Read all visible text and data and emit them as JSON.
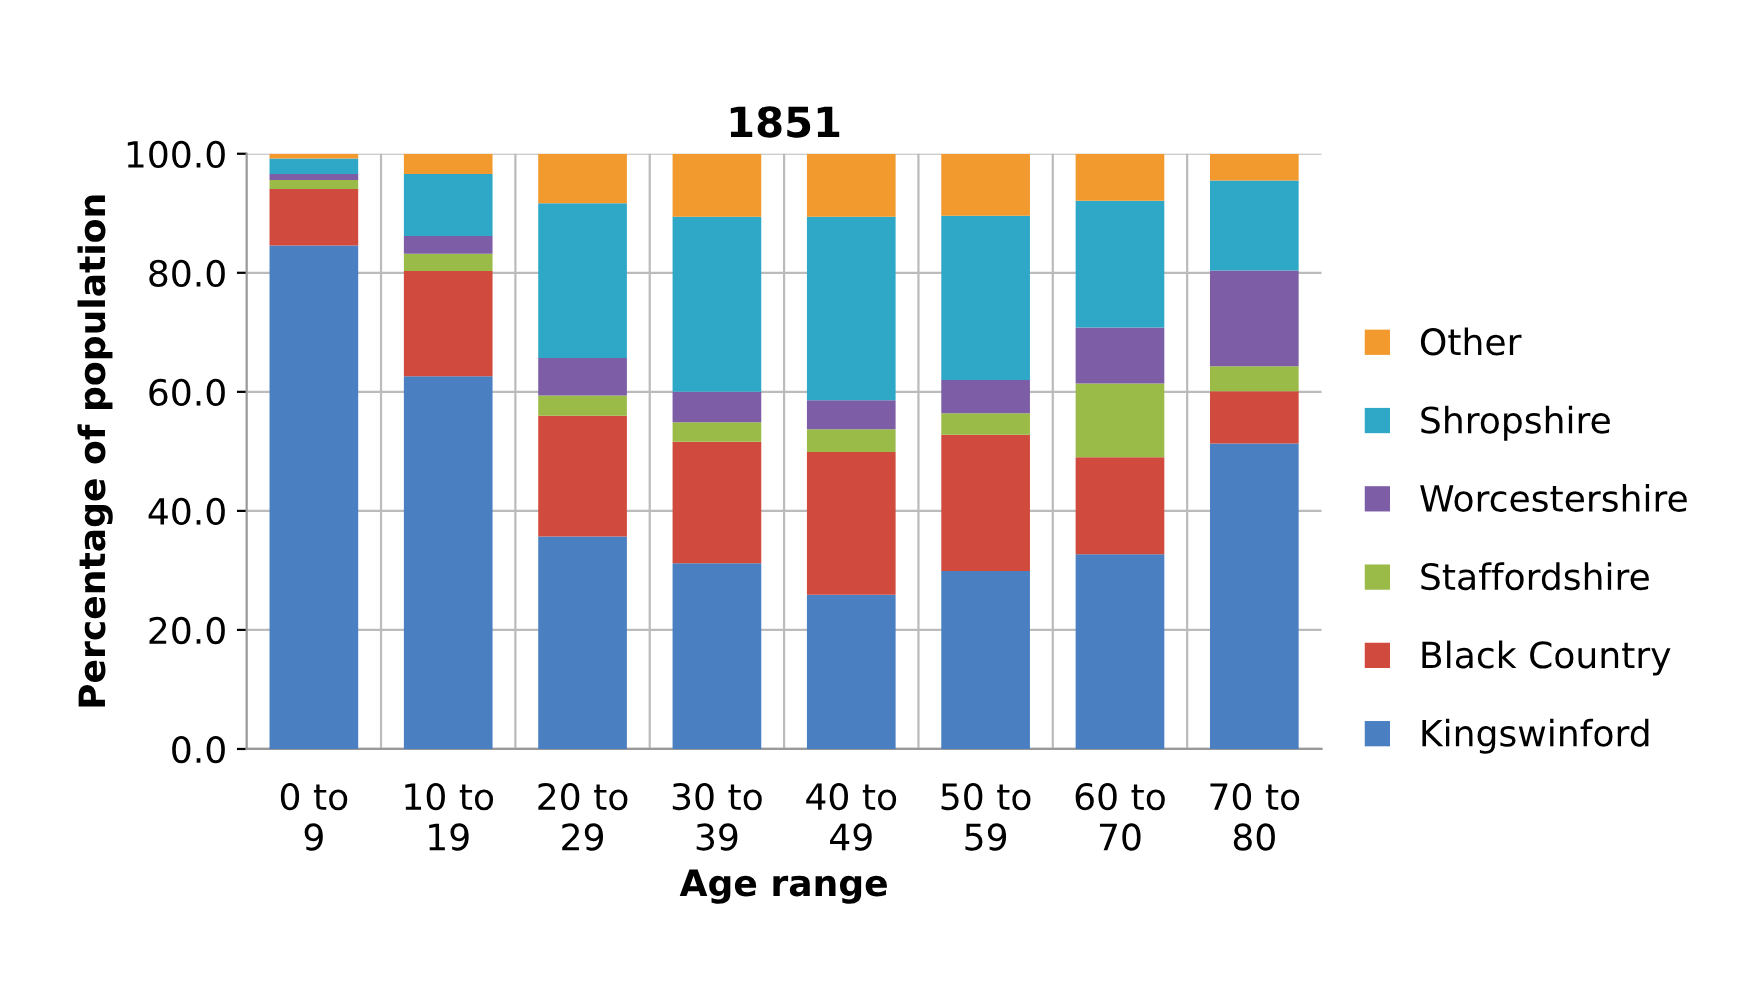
{
  "chart_data": {
    "type": "bar",
    "stacked": true,
    "title": "1851",
    "xlabel": "Age range",
    "ylabel": "Percentage of population",
    "categories": [
      "0 to 9",
      "10 to 19",
      "20 to 29",
      "30 to 39",
      "40 to 49",
      "50 to 59",
      "60 to 70",
      "70 to 80"
    ],
    "series": [
      {
        "name": "Kingswinford",
        "color": "#4a7fc1",
        "values": [
          84.6,
          62.6,
          35.7,
          31.2,
          25.9,
          29.9,
          32.7,
          51.3
        ]
      },
      {
        "name": "Black Country",
        "color": "#d04a3e",
        "values": [
          9.5,
          17.7,
          20.3,
          20.4,
          24.0,
          22.9,
          16.3,
          8.8
        ]
      },
      {
        "name": "Staffordshire",
        "color": "#9bbb49",
        "values": [
          1.5,
          2.9,
          3.4,
          3.3,
          3.8,
          3.6,
          12.4,
          4.2
        ]
      },
      {
        "name": "Worcestershire",
        "color": "#7d5ea6",
        "values": [
          1.0,
          3.0,
          6.3,
          5.1,
          4.9,
          5.6,
          9.4,
          16.1
        ]
      },
      {
        "name": "Shropshire",
        "color": "#2fa8c8",
        "values": [
          2.6,
          10.4,
          26.0,
          29.4,
          30.8,
          27.6,
          21.3,
          15.1
        ]
      },
      {
        "name": "Other",
        "color": "#f29a2e",
        "values": [
          0.8,
          3.4,
          8.3,
          10.6,
          10.6,
          10.4,
          7.9,
          4.5
        ]
      }
    ],
    "ylim": [
      0,
      100
    ],
    "yticks": [
      {
        "value": 0,
        "label": "0.0"
      },
      {
        "value": 20,
        "label": "20.0"
      },
      {
        "value": 40,
        "label": "40.0"
      },
      {
        "value": 60,
        "label": "60.0"
      },
      {
        "value": 80,
        "label": "80.0"
      },
      {
        "value": 100,
        "label": "100.0"
      }
    ],
    "grid": true,
    "legend": "right"
  }
}
